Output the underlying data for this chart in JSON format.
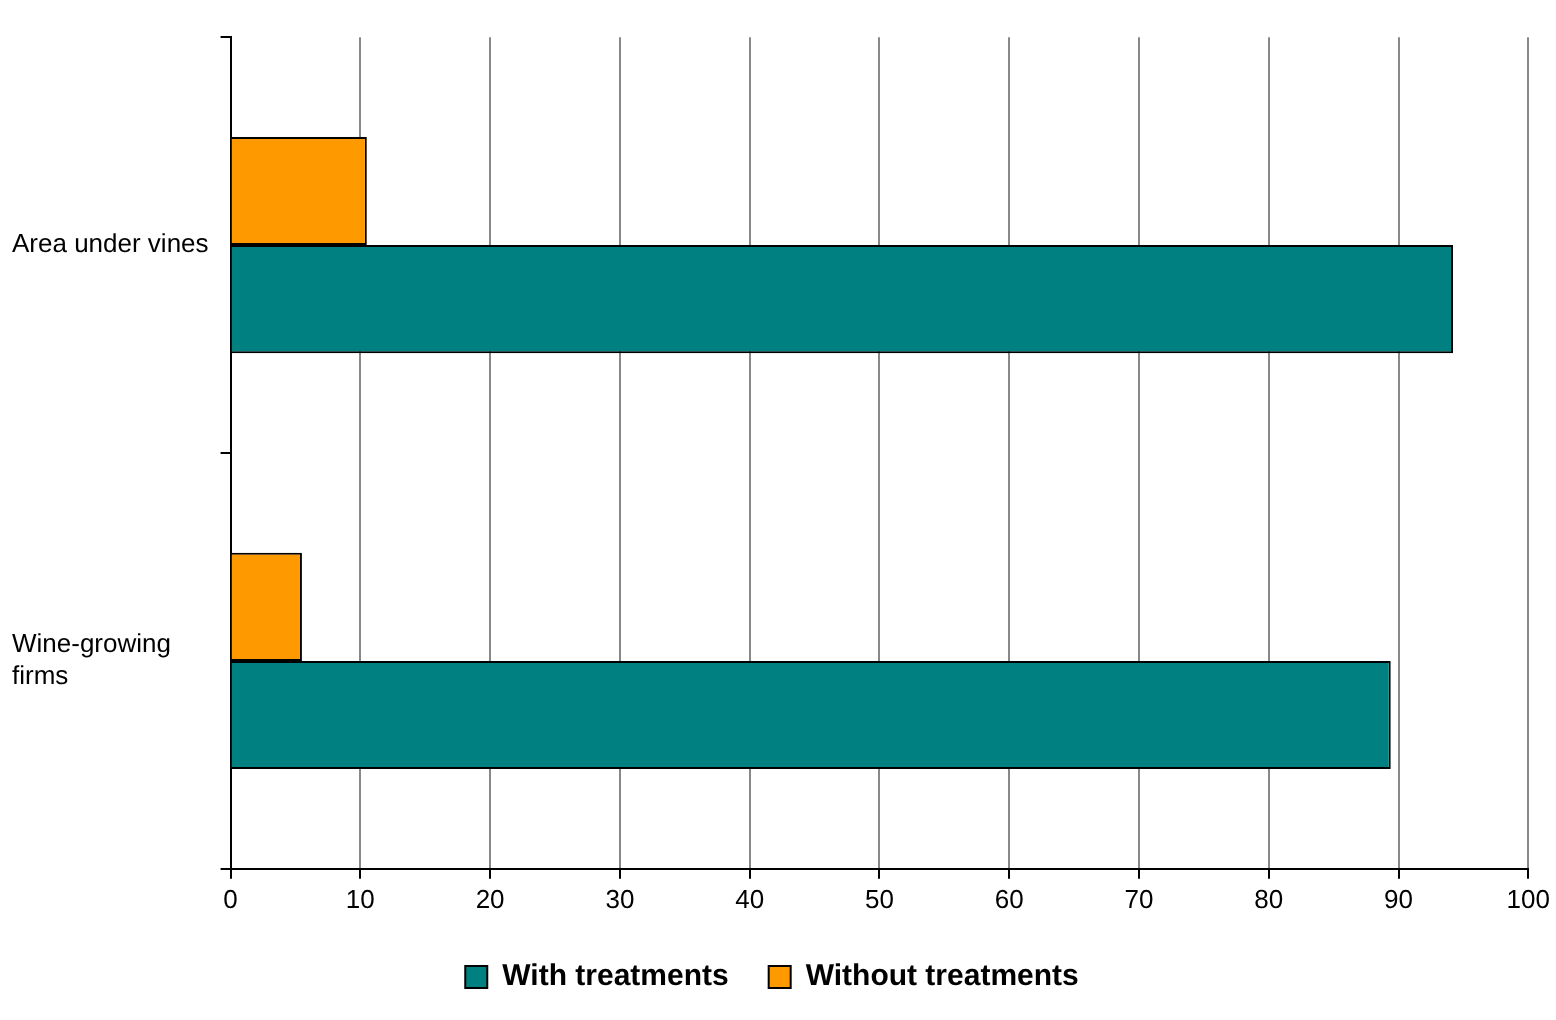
{
  "chart_data": {
    "type": "bar",
    "orientation": "horizontal",
    "categories": [
      "Area under vines",
      "Wine-growing firms"
    ],
    "series": [
      {
        "name": "With treatments",
        "color": "#008080",
        "values": [
          94.2,
          89.4
        ]
      },
      {
        "name": "Without treatments",
        "color": "#ff9900",
        "values": [
          10.5,
          5.5
        ]
      }
    ],
    "xlim": [
      0,
      100
    ],
    "xticks": [
      0,
      10,
      20,
      30,
      40,
      50,
      60,
      70,
      80,
      90,
      100
    ],
    "grid": "x",
    "legend": "bottom"
  }
}
